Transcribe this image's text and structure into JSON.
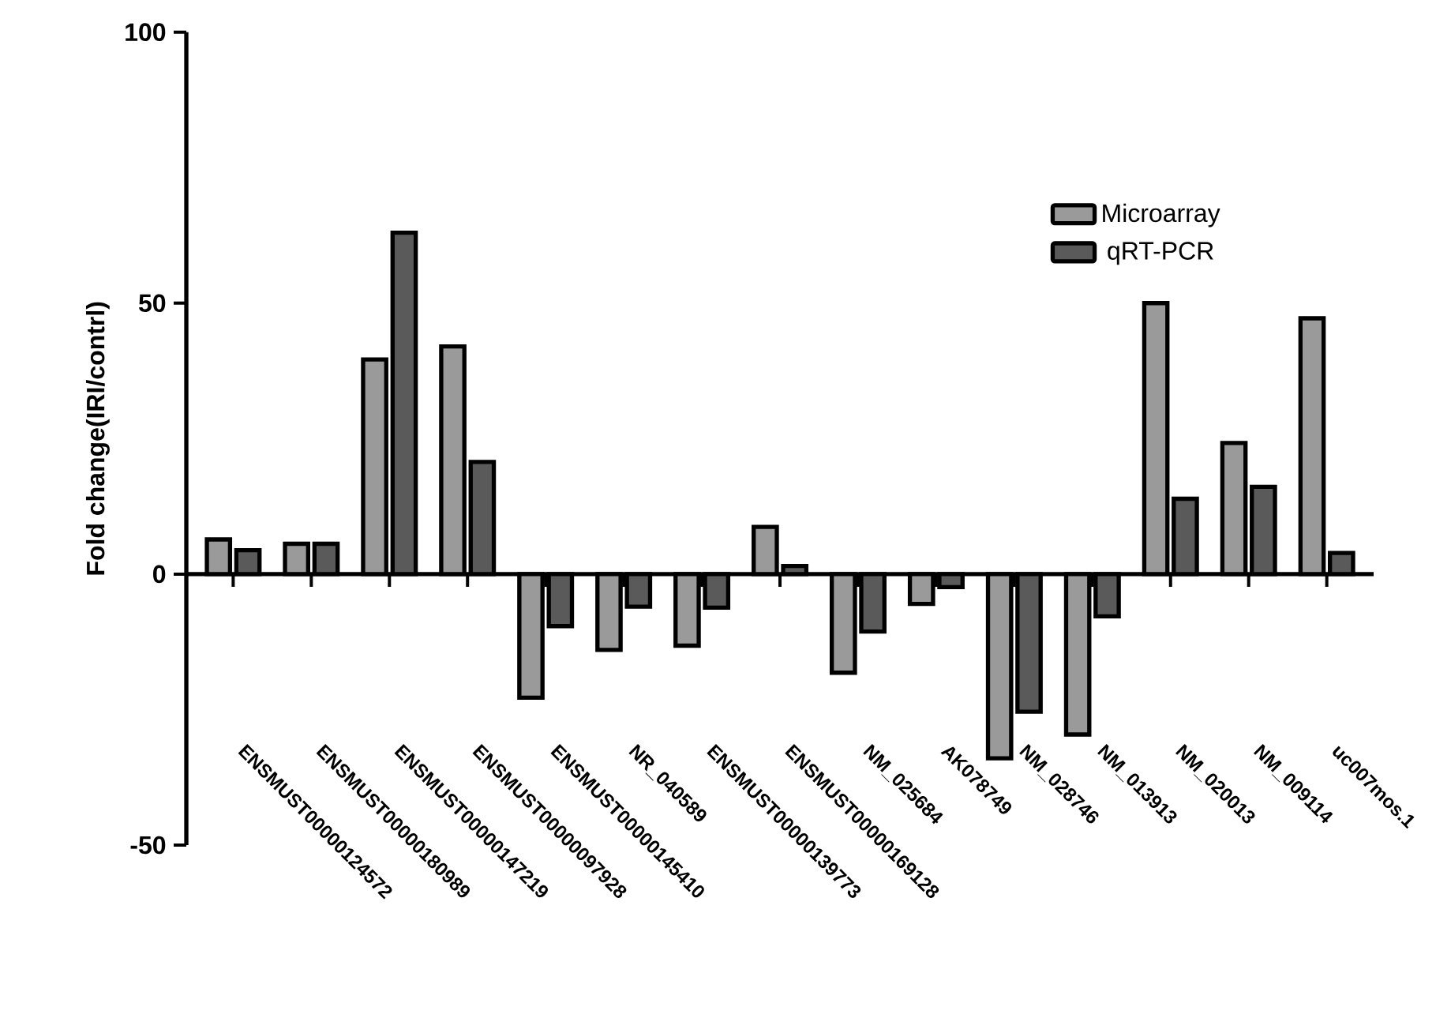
{
  "chart_data": {
    "type": "bar",
    "ylabel": "Fold change(IRI/contrl)",
    "categories": [
      "ENSMUST00000124572",
      "ENSMUST00000180989",
      "ENSMUST00000147219",
      "ENSMUST00000097928",
      "ENSMUST00000145410",
      "NR_040589",
      "ENSMUST00000139773",
      "ENSMUST00000169128",
      "NM_025684",
      "AK078749",
      "NM_028746",
      "NM_013913",
      "NM_020013",
      "NM_009114",
      "uc007mos.1"
    ],
    "series": [
      {
        "name": "Microarray",
        "color": "#9a9a9a",
        "values": [
          6.4,
          5.6,
          39.6,
          42,
          -22.8,
          -14,
          -13.2,
          8.7,
          -18.2,
          -5.5,
          -34,
          -29.6,
          50,
          24.2,
          47.2
        ]
      },
      {
        "name": "qRT-PCR",
        "color": "#5a5a5a",
        "values": [
          4.4,
          5.6,
          63,
          20.7,
          -9.6,
          -6,
          -6.2,
          1.5,
          -10.6,
          -2.4,
          -25.4,
          -7.8,
          13.9,
          16.1,
          3.9
        ]
      }
    ],
    "ylim": [
      -50,
      100
    ],
    "yticks": [
      -50,
      0,
      50,
      100
    ],
    "legend": "top right"
  }
}
